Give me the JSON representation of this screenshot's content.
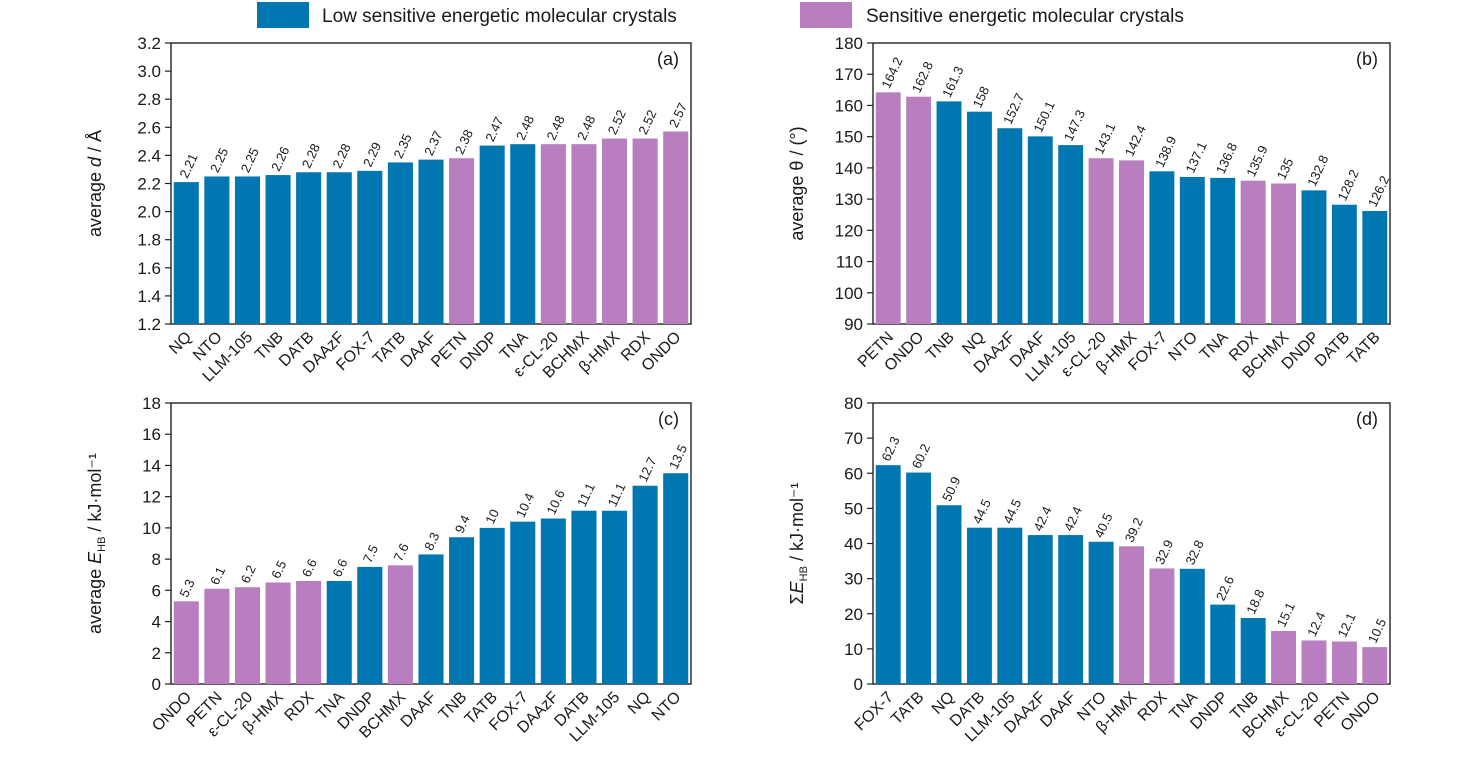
{
  "legend": {
    "low": {
      "label": "Low sensitive energetic molecular crystals",
      "color": "#0077b0"
    },
    "sensitive": {
      "label": "Sensitive energetic molecular crystals",
      "color": "#b97ec0"
    }
  },
  "chart_data": [
    {
      "type": "bar",
      "panel_label": "(a)",
      "ylabel": "average d / Å",
      "ylim": [
        1.2,
        3.2
      ],
      "yticks": [
        "1.2",
        "1.4",
        "1.6",
        "1.8",
        "2.0",
        "2.2",
        "2.4",
        "2.6",
        "2.8",
        "3.0",
        "3.2"
      ],
      "categories": [
        "NQ",
        "NTO",
        "LLM-105",
        "TNB",
        "DATB",
        "DAAzF",
        "FOX-7",
        "TATB",
        "DAAF",
        "PETN",
        "DNDP",
        "TNA",
        "ε-CL-20",
        "BCHMX",
        "β-HMX",
        "RDX",
        "ONDO"
      ],
      "values": [
        2.21,
        2.25,
        2.25,
        2.26,
        2.28,
        2.28,
        2.29,
        2.35,
        2.37,
        2.38,
        2.47,
        2.48,
        2.48,
        2.48,
        2.52,
        2.52,
        2.57
      ],
      "value_labels": [
        "2.21",
        "2.25",
        "2.25",
        "2.26",
        "2.28",
        "2.28",
        "2.29",
        "2.35",
        "2.37",
        "2.38",
        "2.47",
        "2.48",
        "2.48",
        "2.48",
        "2.52",
        "2.52",
        "2.57"
      ],
      "groups": [
        "low",
        "low",
        "low",
        "low",
        "low",
        "low",
        "low",
        "low",
        "low",
        "sensitive",
        "low",
        "low",
        "sensitive",
        "sensitive",
        "sensitive",
        "sensitive",
        "sensitive"
      ]
    },
    {
      "type": "bar",
      "panel_label": "(b)",
      "ylabel": "average θ / (°)",
      "ylim": [
        90,
        180
      ],
      "yticks": [
        "90",
        "100",
        "110",
        "120",
        "130",
        "140",
        "150",
        "160",
        "170",
        "180"
      ],
      "categories": [
        "PETN",
        "ONDO",
        "TNB",
        "NQ",
        "DAAzF",
        "DAAF",
        "LLM-105",
        "ε-CL-20",
        "β-HMX",
        "FOX-7",
        "NTO",
        "TNA",
        "RDX",
        "BCHMX",
        "DNDP",
        "DATB",
        "TATB"
      ],
      "values": [
        164.2,
        162.8,
        161.3,
        158,
        152.7,
        150.1,
        147.3,
        143.1,
        142.4,
        138.9,
        137.1,
        136.8,
        135.9,
        135,
        132.8,
        128.2,
        126.2
      ],
      "value_labels": [
        "164.2",
        "162.8",
        "161.3",
        "158",
        "152.7",
        "150.1",
        "147.3",
        "143.1",
        "142.4",
        "138.9",
        "137.1",
        "136.8",
        "135.9",
        "135",
        "132.8",
        "128.2",
        "126.2"
      ],
      "groups": [
        "sensitive",
        "sensitive",
        "low",
        "low",
        "low",
        "low",
        "low",
        "sensitive",
        "sensitive",
        "low",
        "low",
        "low",
        "sensitive",
        "sensitive",
        "low",
        "low",
        "low"
      ]
    },
    {
      "type": "bar",
      "panel_label": "(c)",
      "ylabel": "average E_HB / kJ·mol⁻¹",
      "ylim": [
        0,
        18
      ],
      "yticks": [
        "0",
        "2",
        "4",
        "6",
        "8",
        "10",
        "12",
        "14",
        "16",
        "18"
      ],
      "categories": [
        "ONDO",
        "PETN",
        "ε-CL-20",
        "β-HMX",
        "RDX",
        "TNA",
        "DNDP",
        "BCHMX",
        "DAAF",
        "TNB",
        "TATB",
        "FOX-7",
        "DAAzF",
        "DATB",
        "LLM-105",
        "NQ",
        "NTO"
      ],
      "values": [
        5.3,
        6.1,
        6.2,
        6.5,
        6.6,
        6.6,
        7.5,
        7.6,
        8.3,
        9.4,
        10,
        10.4,
        10.6,
        11.1,
        11.1,
        12.7,
        13.5
      ],
      "value_labels": [
        "5.3",
        "6.1",
        "6.2",
        "6.5",
        "6.6",
        "6.6",
        "7.5",
        "7.6",
        "8.3",
        "9.4",
        "10",
        "10.4",
        "10.6",
        "11.1",
        "11.1",
        "12.7",
        "13.5"
      ],
      "groups": [
        "sensitive",
        "sensitive",
        "sensitive",
        "sensitive",
        "sensitive",
        "low",
        "low",
        "sensitive",
        "low",
        "low",
        "low",
        "low",
        "low",
        "low",
        "low",
        "low",
        "low"
      ]
    },
    {
      "type": "bar",
      "panel_label": "(d)",
      "ylabel": "ΣE_HB / kJ·mol⁻¹",
      "ylim": [
        0,
        80
      ],
      "yticks": [
        "0",
        "10",
        "20",
        "30",
        "40",
        "50",
        "60",
        "70",
        "80"
      ],
      "categories": [
        "FOX-7",
        "TATB",
        "NQ",
        "DATB",
        "LLM-105",
        "DAAzF",
        "DAAF",
        "NTO",
        "β-HMX",
        "RDX",
        "TNA",
        "DNDP",
        "TNB",
        "BCHMX",
        "ε-CL-20",
        "PETN",
        "ONDO"
      ],
      "values": [
        62.3,
        60.2,
        50.9,
        44.5,
        44.5,
        42.4,
        42.4,
        40.5,
        39.2,
        32.9,
        32.8,
        22.6,
        18.8,
        15.1,
        12.4,
        12.1,
        10.5
      ],
      "value_labels": [
        "62.3",
        "60.2",
        "50.9",
        "44.5",
        "44.5",
        "42.4",
        "42.4",
        "40.5",
        "39.2",
        "32.9",
        "32.8",
        "22.6",
        "18.8",
        "15.1",
        "12.4",
        "12.1",
        "10.5"
      ],
      "groups": [
        "low",
        "low",
        "low",
        "low",
        "low",
        "low",
        "low",
        "low",
        "sensitive",
        "sensitive",
        "low",
        "low",
        "low",
        "sensitive",
        "sensitive",
        "sensitive",
        "sensitive"
      ]
    }
  ]
}
